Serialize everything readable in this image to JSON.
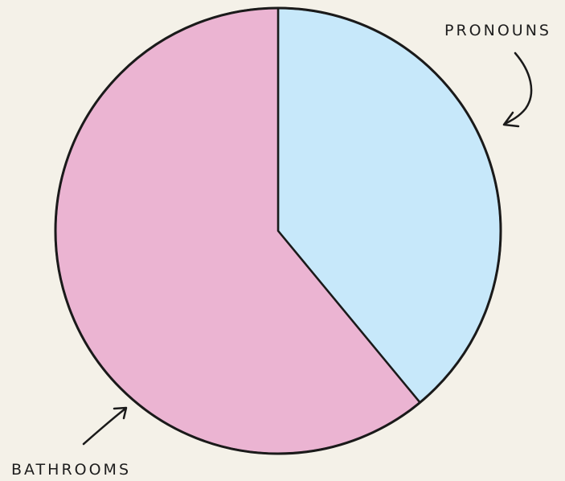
{
  "chart_data": {
    "type": "pie",
    "title": "",
    "slices": [
      {
        "label": "PRONOUNS",
        "value": 39,
        "color": "#c7e8fa"
      },
      {
        "label": "BATHROOMS",
        "value": 61,
        "color": "#ebb4d2"
      }
    ],
    "start_angle": "12 o'clock",
    "direction": "clockwise",
    "legend": "none",
    "annotations": "hand-drawn arrow labels pointing to slices"
  }
}
